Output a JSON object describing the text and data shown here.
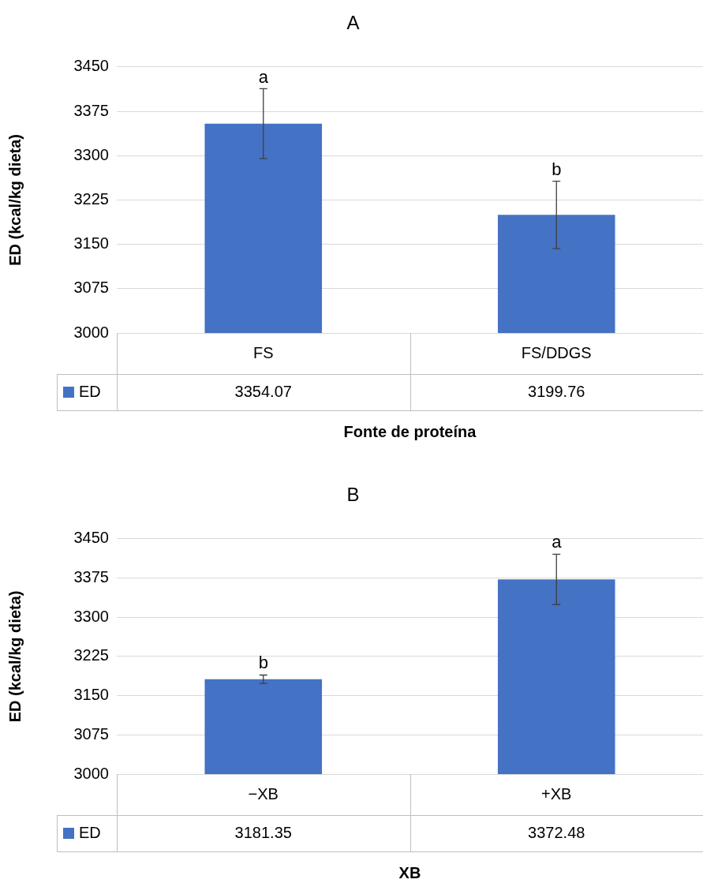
{
  "chart_data": [
    {
      "type": "bar",
      "title": "A",
      "xlabel": "Fonte de proteína",
      "ylabel": "ED (kcal/kg dieta)",
      "categories": [
        "FS",
        "FS/DDGS"
      ],
      "series": [
        {
          "name": "ED",
          "color": "#4472c4",
          "values": [
            3354.07,
            3199.76
          ],
          "errors": [
            59,
            57
          ]
        }
      ],
      "ylim": [
        3000,
        3450
      ],
      "yticks": [
        3000,
        3075,
        3150,
        3225,
        3300,
        3375,
        3450
      ],
      "grid": "y",
      "legend": "bottom",
      "data_labels": true,
      "annotations": [
        {
          "text": "a",
          "x": "FS",
          "y": 3411
        },
        {
          "text": "b",
          "x": "FS/DDGS",
          "y": 3255
        }
      ]
    },
    {
      "type": "bar",
      "title": "B",
      "xlabel": "XB",
      "ylabel": "ED (kcal/kg dieta)",
      "categories": [
        "−XB",
        "+XB"
      ],
      "series": [
        {
          "name": "ED",
          "color": "#4472c4",
          "values": [
            3181.35,
            3372.48
          ],
          "errors": [
            8,
            48
          ]
        }
      ],
      "ylim": [
        3000,
        3450
      ],
      "yticks": [
        3000,
        3075,
        3150,
        3225,
        3300,
        3375,
        3450
      ],
      "grid": "y",
      "legend": "bottom",
      "data_labels": true,
      "annotations": [
        {
          "text": "b",
          "x": "−XB",
          "y": 3189
        },
        {
          "text": "a",
          "x": "+XB",
          "y": 3420
        }
      ]
    }
  ]
}
